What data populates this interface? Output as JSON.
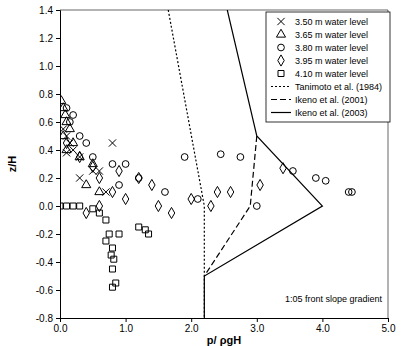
{
  "chart_data": {
    "type": "scatter",
    "x_label": "p/ ρgH",
    "y_label": "z/H",
    "annotation": "1:05 front slope gradient",
    "xlim": [
      0,
      5
    ],
    "ylim": [
      -0.8,
      1.4
    ],
    "xticks": [
      {
        "value": 0,
        "label": "0.0"
      },
      {
        "value": 1,
        "label": "1.0"
      },
      {
        "value": 2,
        "label": "2.0"
      },
      {
        "value": 3,
        "label": "3.0"
      },
      {
        "value": 4,
        "label": "4.0"
      },
      {
        "value": 5,
        "label": "5.0"
      }
    ],
    "yticks": [
      -0.8,
      -0.6,
      -0.4,
      -0.2,
      {
        "value": 0,
        "label": "0.0"
      },
      0.2,
      0.4,
      0.6,
      0.8,
      {
        "value": 1,
        "label": "1.0"
      },
      1.2,
      1.4
    ],
    "grid": false,
    "legend": "top-right",
    "series": [
      {
        "name": "3.50 m water level",
        "type": "scatter",
        "marker": "x",
        "color": "#000000",
        "x": [
          0.05,
          0.1,
          0.15,
          0.2,
          0.3,
          0.1,
          0.6,
          0.8,
          0.3,
          0.7,
          0.5
        ],
        "values": [
          0.55,
          0.5,
          0.45,
          0.4,
          0.35,
          0.38,
          0.25,
          0.45,
          0.2,
          0.1,
          0.25
        ]
      },
      {
        "name": "3.65 m water level",
        "type": "scatter",
        "marker": "triangle",
        "color": "#000000",
        "x": [
          0.02,
          0.05,
          0.08,
          0.1,
          0.15,
          0.05,
          0.2,
          0.1,
          0.3,
          0.5,
          0.4,
          0.6
        ],
        "values": [
          0.75,
          0.7,
          0.65,
          0.6,
          0.55,
          0.5,
          0.45,
          0.4,
          0.35,
          0.3,
          0.15,
          0.1
        ]
      },
      {
        "name": "3.80 m water level",
        "type": "scatter",
        "marker": "circle",
        "color": "#000000",
        "x": [
          0.1,
          0.2,
          0.15,
          0.3,
          0.4,
          0.5,
          0.8,
          1.0,
          1.9,
          2.45,
          2.75,
          3.55,
          3.9,
          4.05,
          4.4,
          4.45,
          3.0,
          2.1,
          1.6,
          1.2,
          0.9
        ],
        "values": [
          0.7,
          0.65,
          0.6,
          0.5,
          0.45,
          0.35,
          0.3,
          0.3,
          0.35,
          0.37,
          0.35,
          0.25,
          0.2,
          0.18,
          0.1,
          0.1,
          0.0,
          0.05,
          0.1,
          0.2,
          0.15
        ]
      },
      {
        "name": "3.95 m water level",
        "type": "scatter",
        "marker": "diamond",
        "color": "#000000",
        "x": [
          0.1,
          0.3,
          0.5,
          0.6,
          0.9,
          1.2,
          0.8,
          1.0,
          1.5,
          2.0,
          2.4,
          2.6,
          2.3,
          3.05,
          3.4,
          1.7,
          0.6,
          0.4,
          1.4
        ],
        "values": [
          0.45,
          0.35,
          0.28,
          0.2,
          0.25,
          0.2,
          0.1,
          0.05,
          0.0,
          0.05,
          0.1,
          0.1,
          0.0,
          0.15,
          0.27,
          -0.05,
          0.0,
          -0.05,
          0.15
        ]
      },
      {
        "name": "4.10 m water level",
        "type": "scatter",
        "marker": "square",
        "color": "#000000",
        "x": [
          0.0,
          0.1,
          0.2,
          0.3,
          0.5,
          0.6,
          0.7,
          0.75,
          0.8,
          0.78,
          0.82,
          0.8,
          0.85,
          0.8,
          1.2,
          1.3,
          1.35,
          0.9,
          0.7
        ],
        "values": [
          0.0,
          0.0,
          0.0,
          0.0,
          -0.02,
          -0.05,
          -0.1,
          -0.2,
          -0.3,
          -0.35,
          -0.38,
          -0.45,
          -0.55,
          -0.58,
          -0.15,
          -0.17,
          -0.2,
          -0.2,
          -0.25
        ]
      },
      {
        "name": "Tanimoto et al. (1984)",
        "type": "line",
        "line_style": "dotted",
        "color": "#000000",
        "x": [
          1.65,
          2.2,
          2.2
        ],
        "values": [
          1.4,
          0.0,
          -0.8
        ]
      },
      {
        "name": "Ikeno et al. (2001)",
        "type": "line",
        "line_style": "dashed",
        "color": "#000000",
        "x": [
          3.0,
          2.9,
          2.2
        ],
        "values": [
          0.5,
          0.0,
          -0.5
        ]
      },
      {
        "name": "Ikeno et al. (2003)",
        "type": "line",
        "line_style": "solid",
        "color": "#000000",
        "x": [
          2.55,
          3.0,
          4.0,
          2.2,
          2.2
        ],
        "values": [
          1.4,
          0.5,
          0.0,
          -0.5,
          -0.8
        ]
      }
    ]
  }
}
